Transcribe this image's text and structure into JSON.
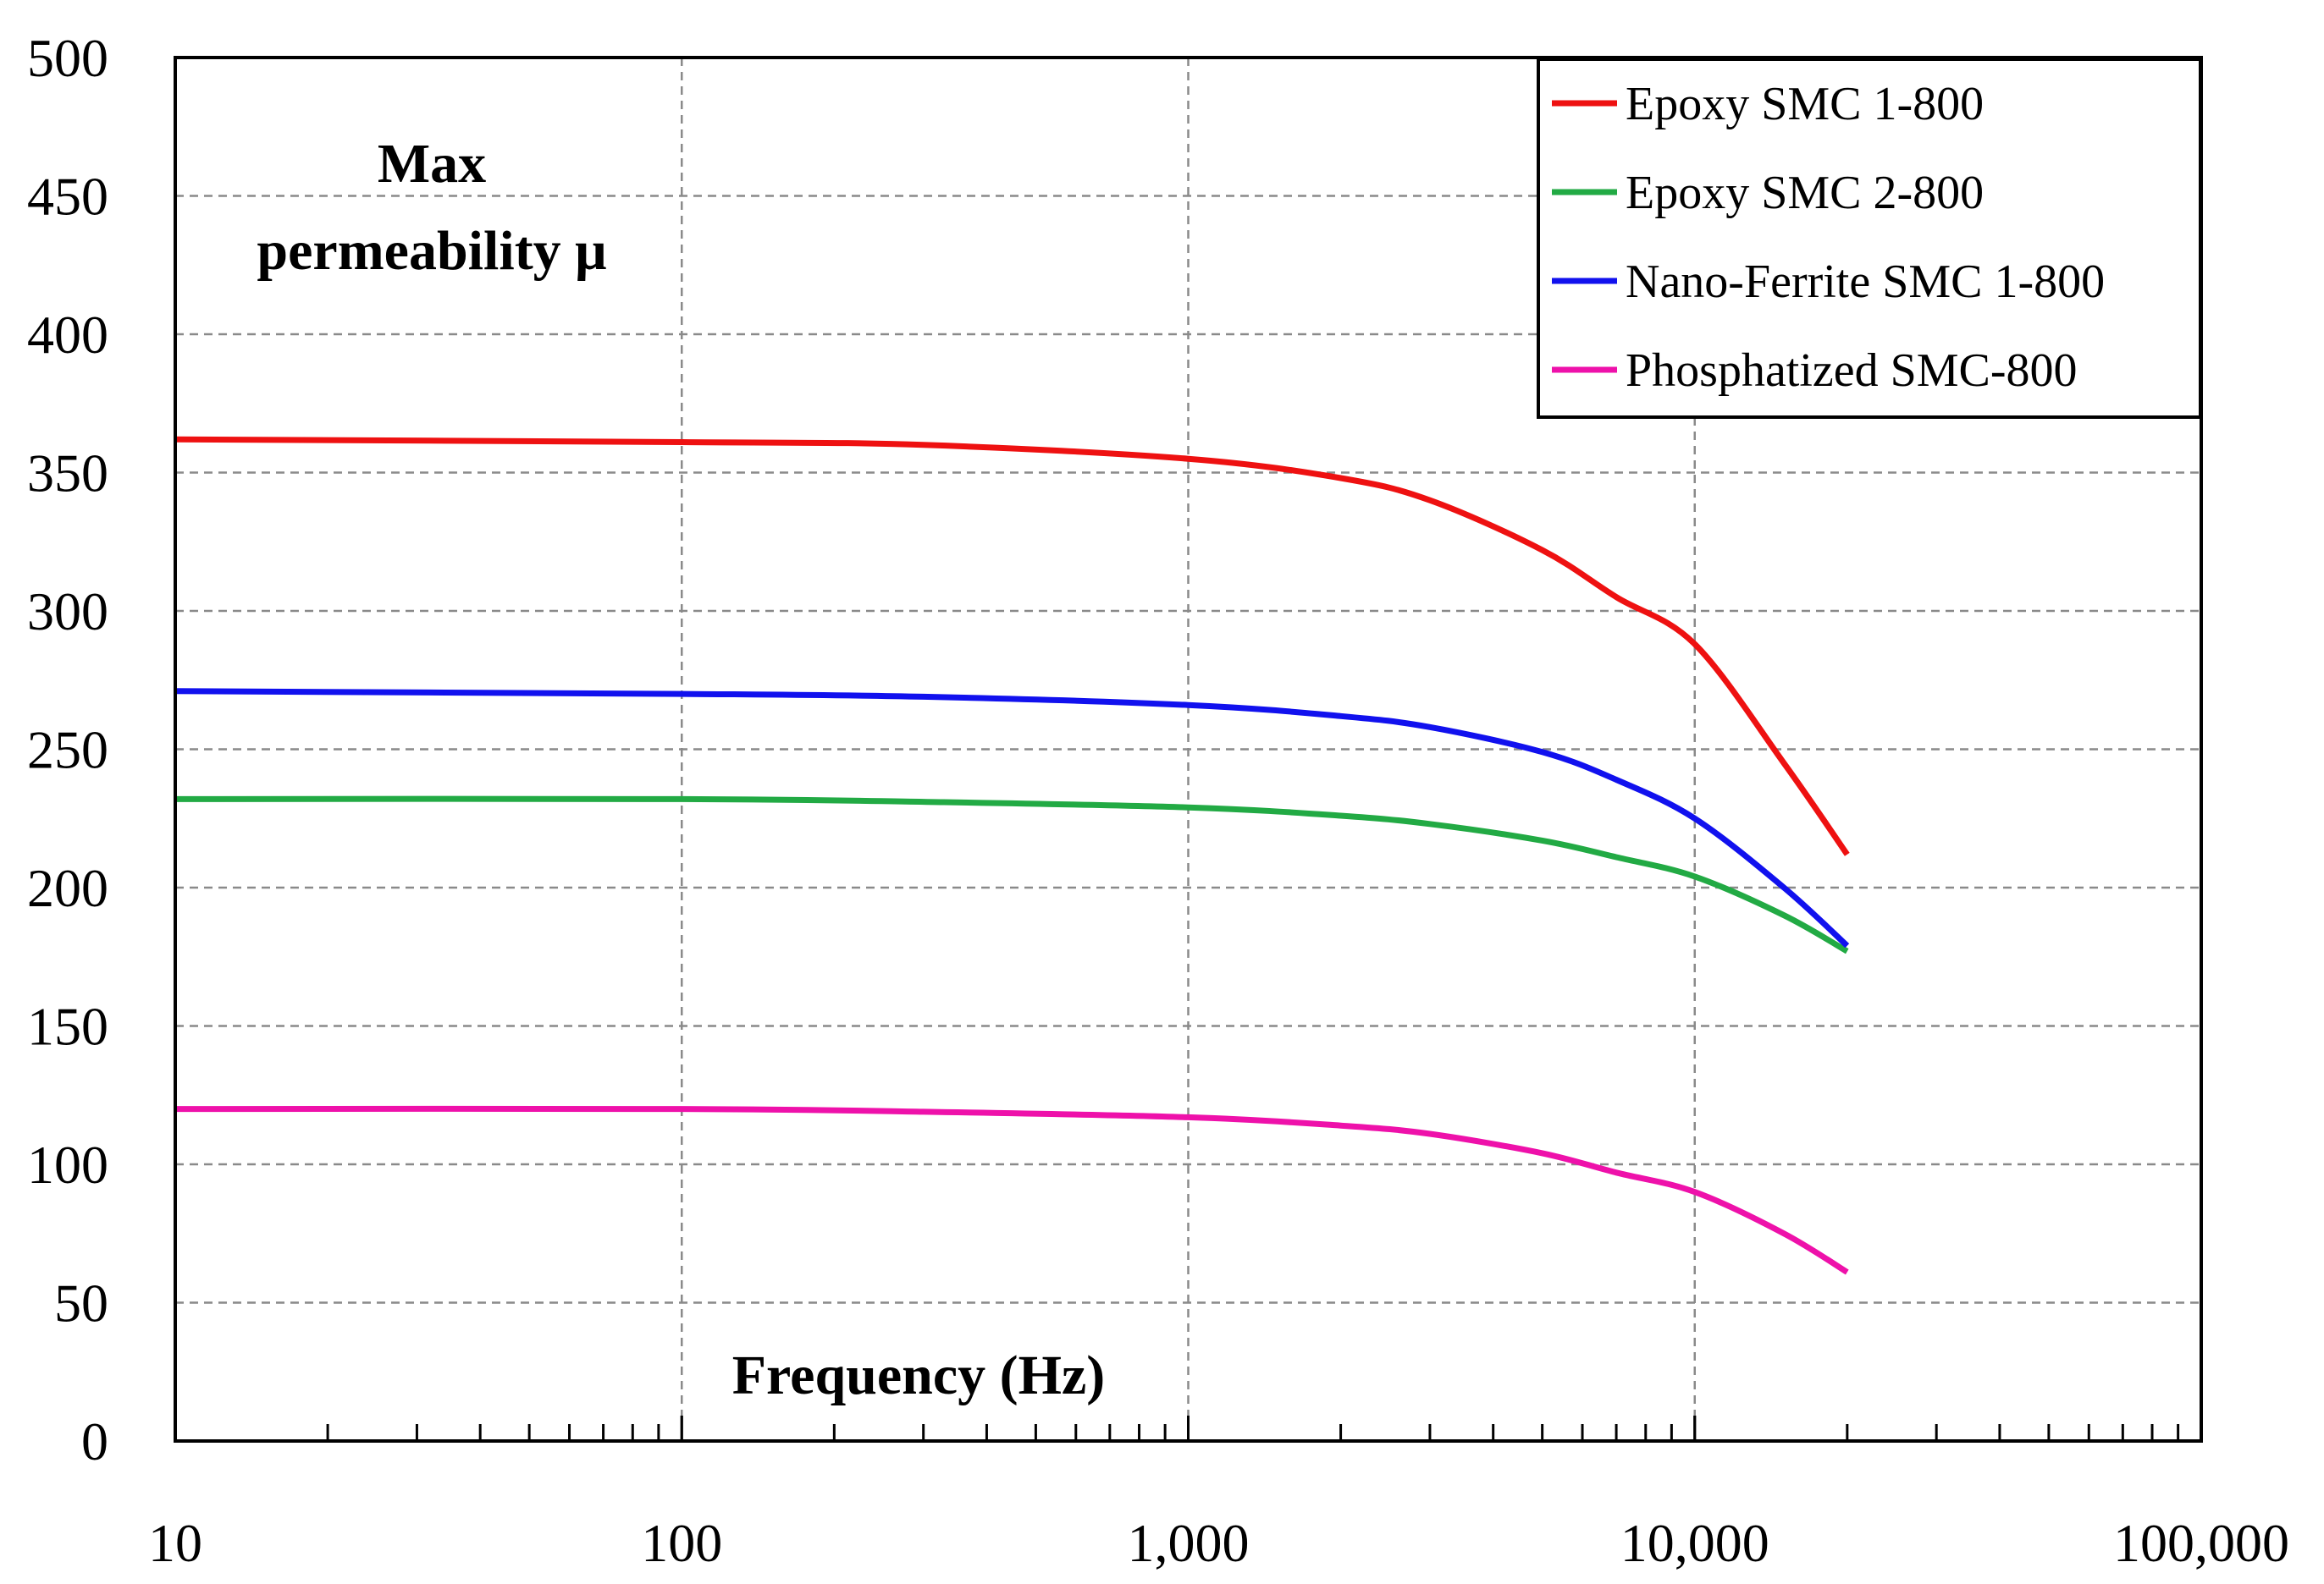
{
  "chart_data": {
    "type": "line",
    "title": "",
    "ylabel": "Max permeability μ",
    "ylabel_lines": [
      "Max",
      "permeability μ"
    ],
    "xlabel": "Frequency (Hz)",
    "xscale": "log",
    "xlim": [
      10,
      100000
    ],
    "ylim": [
      0,
      500
    ],
    "grid": true,
    "legend_position": "top-right",
    "x_tick_values": [
      10,
      100,
      1000,
      10000,
      100000
    ],
    "x_tick_labels": [
      "10",
      "100",
      "1,000",
      "10,000",
      "100,000"
    ],
    "y_tick_values": [
      0,
      50,
      100,
      150,
      200,
      250,
      300,
      350,
      400,
      450,
      500
    ],
    "y_tick_labels": [
      "0",
      "50",
      "100",
      "150",
      "200",
      "250",
      "300",
      "350",
      "400",
      "450",
      "500"
    ],
    "x": [
      10,
      100,
      300,
      1000,
      2000,
      3000,
      5000,
      7000,
      10000,
      15000,
      20000
    ],
    "series": [
      {
        "name": "Epoxy SMC 1-800",
        "color": "#ee1111",
        "values": [
          362,
          361,
          360,
          355,
          348,
          340,
          322,
          305,
          288,
          245,
          212
        ]
      },
      {
        "name": "Epoxy SMC 2-800",
        "color": "#22aa44",
        "values": [
          232,
          232,
          231,
          229,
          226,
          223,
          217,
          211,
          204,
          190,
          177
        ]
      },
      {
        "name": "Nano-Ferrite SMC 1-800",
        "color": "#1111ee",
        "values": [
          271,
          270,
          269,
          266,
          262,
          258,
          249,
          239,
          225,
          200,
          179
        ]
      },
      {
        "name": "Phosphatized SMC-800",
        "color": "#ee11aa",
        "values": [
          120,
          120,
          119,
          117,
          114,
          111,
          104,
          97,
          90,
          75,
          61
        ]
      }
    ]
  }
}
